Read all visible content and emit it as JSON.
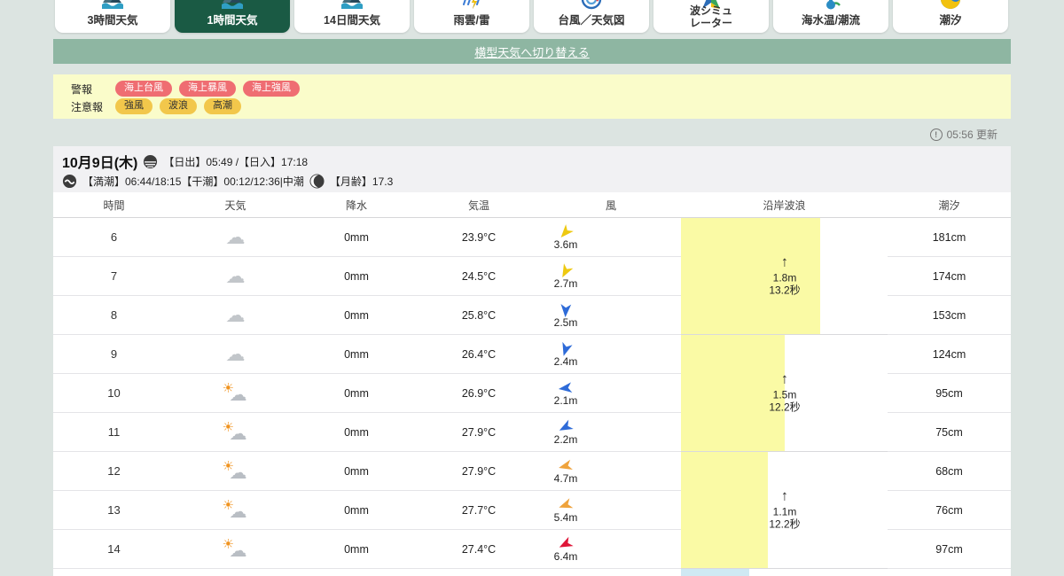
{
  "colors": {
    "page_bg": "#dce4e1",
    "selected_tab": "#1a5a44",
    "banner": "#8eb6a2",
    "alert_bg": "#fafcca",
    "warning_pill": "#ef6d72",
    "advisory_pill": "#f2c74b",
    "wave_block": "#fafaa5",
    "wave_block_next": "#cfe9f3"
  },
  "tabs": [
    {
      "id": "3hour",
      "label": "3時間天気",
      "icon": "weather-logo-icon",
      "selected": false
    },
    {
      "id": "1hour",
      "label": "1時間天気",
      "icon": "weather-logo-icon",
      "selected": true
    },
    {
      "id": "14day",
      "label": "14日間天気",
      "icon": "weather-logo-icon",
      "selected": false
    },
    {
      "id": "radar",
      "label": "雨雲/雷",
      "icon": "rain-lightning-icon",
      "selected": false
    },
    {
      "id": "typhoon",
      "label": "台風／天気図",
      "icon": "typhoon-icon",
      "selected": false
    },
    {
      "id": "wavesim",
      "label": "波シミュ\nレーター",
      "icon": "wave-sim-icon",
      "selected": false,
      "twoline": true
    },
    {
      "id": "seatemp",
      "label": "海水温/潮流",
      "icon": "sea-temp-icon",
      "selected": false
    },
    {
      "id": "tide",
      "label": "潮汐",
      "icon": "tide-ball-icon",
      "selected": false
    }
  ],
  "switch_link": "横型天気へ切り替える",
  "alerts": {
    "warning_label": "警報",
    "warnings": [
      "海上台風",
      "海上暴風",
      "海上強風"
    ],
    "advisory_label": "注意報",
    "advisories": [
      "強風",
      "波浪",
      "高潮"
    ]
  },
  "updated": "05:56 更新",
  "date_header": {
    "date": "10月9日(木)",
    "sunrise_sunset": "【日出】05:49 /【日入】17:18",
    "tide_info": "【満潮】06:44/18:15【干潮】00:12/12:36|中潮",
    "moon_age": "【月齢】17.3"
  },
  "table": {
    "headers": [
      "時間",
      "天気",
      "降水",
      "気温",
      "風",
      "沿岸波浪",
      "潮汐"
    ],
    "rows": [
      {
        "hour": "6",
        "weather": "cloudy",
        "precip": "0mm",
        "temp": "23.9°C",
        "wind_speed": "3.6m",
        "wind_dir_deg": 222,
        "wind_color": "#eec911",
        "tide": "181cm"
      },
      {
        "hour": "7",
        "weather": "cloudy",
        "precip": "0mm",
        "temp": "24.5°C",
        "wind_speed": "2.7m",
        "wind_dir_deg": 208,
        "wind_color": "#eec911",
        "tide": "174cm"
      },
      {
        "hour": "8",
        "weather": "cloudy",
        "precip": "0mm",
        "temp": "25.8°C",
        "wind_speed": "2.5m",
        "wind_dir_deg": 183,
        "wind_color": "#2e6bd8",
        "tide": "153cm"
      },
      {
        "hour": "9",
        "weather": "cloudy",
        "precip": "0mm",
        "temp": "26.4°C",
        "wind_speed": "2.4m",
        "wind_dir_deg": 197,
        "wind_color": "#2e6bd8",
        "tide": "124cm"
      },
      {
        "hour": "10",
        "weather": "partly",
        "precip": "0mm",
        "temp": "26.9°C",
        "wind_speed": "2.1m",
        "wind_dir_deg": 263,
        "wind_color": "#2e6bd8",
        "tide": "95cm"
      },
      {
        "hour": "11",
        "weather": "partly",
        "precip": "0mm",
        "temp": "27.9°C",
        "wind_speed": "2.2m",
        "wind_dir_deg": 242,
        "wind_color": "#2e6bd8",
        "tide": "75cm"
      },
      {
        "hour": "12",
        "weather": "partly",
        "precip": "0mm",
        "temp": "27.9°C",
        "wind_speed": "4.7m",
        "wind_dir_deg": 256,
        "wind_color": "#efa33c",
        "tide": "68cm"
      },
      {
        "hour": "13",
        "weather": "partly",
        "precip": "0mm",
        "temp": "27.7°C",
        "wind_speed": "5.4m",
        "wind_dir_deg": 250,
        "wind_color": "#efa33c",
        "tide": "76cm"
      },
      {
        "hour": "14",
        "weather": "partly",
        "precip": "0mm",
        "temp": "27.4°C",
        "wind_speed": "6.4m",
        "wind_dir_deg": 243,
        "wind_color": "#df1638",
        "tide": "97cm"
      }
    ],
    "wave_groups": [
      {
        "height": "1.8m",
        "period": "13.2秒",
        "width_pct": 67.4
      },
      {
        "height": "1.5m",
        "period": "12.2秒",
        "width_pct": 50.2
      },
      {
        "height": "1.1m",
        "period": "12.2秒",
        "width_pct": 42.1
      }
    ],
    "next_wave_peek": {
      "width_pct": 33
    }
  }
}
